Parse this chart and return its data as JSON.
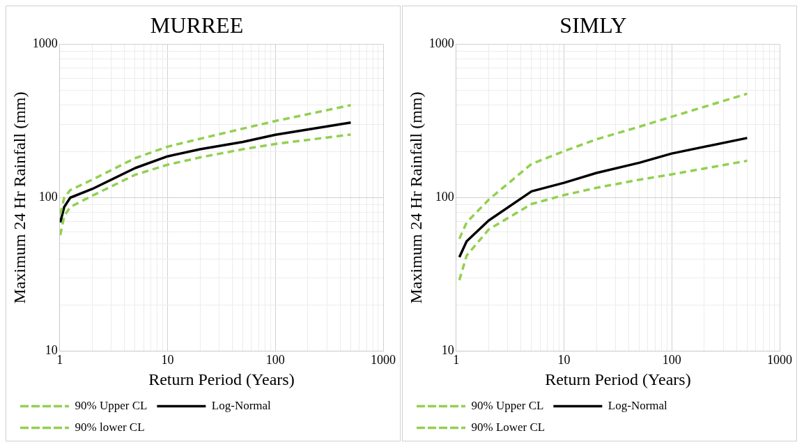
{
  "chart_data": [
    {
      "type": "line",
      "title": "MURREE",
      "xlabel": "Return Period (Years)",
      "ylabel": "Maximum 24 Hr Rainfall (mm)",
      "log": "xy",
      "grid": true,
      "legend": "bottom",
      "marker": "none",
      "x": [
        1.01,
        1.1,
        1.25,
        2,
        5,
        10,
        20,
        50,
        100,
        500
      ],
      "series": [
        {
          "name": "90% Upper CL",
          "color": "#92d050",
          "line_style": "dashed",
          "values": [
            78,
            100,
            112,
            131,
            181,
            215,
            242,
            282,
            316,
            401
          ]
        },
        {
          "name": "Log-Normal",
          "color": "#000000",
          "line_style": "solid",
          "values": [
            69,
            87,
            100,
            114,
            156,
            186,
            207,
            231,
            257,
            309
          ]
        },
        {
          "name": "90% lower CL",
          "color": "#92d050",
          "line_style": "dashed",
          "values": [
            57,
            76,
            87,
            103,
            141,
            164,
            183,
            207,
            224,
            258
          ]
        }
      ],
      "xlim": [
        1,
        1000
      ],
      "ylim": [
        10,
        1000
      ],
      "xticks": [
        1,
        {
          "value": 2,
          "label": null
        },
        {
          "value": 3,
          "label": null
        },
        {
          "value": 4,
          "label": null
        },
        {
          "value": 5,
          "label": null
        },
        {
          "value": 6,
          "label": null
        },
        {
          "value": 7,
          "label": null
        },
        {
          "value": 8,
          "label": null
        },
        {
          "value": 9,
          "label": null
        },
        10,
        {
          "value": 20,
          "label": null
        },
        {
          "value": 30,
          "label": null
        },
        {
          "value": 40,
          "label": null
        },
        {
          "value": 50,
          "label": null
        },
        {
          "value": 60,
          "label": null
        },
        {
          "value": 70,
          "label": null
        },
        {
          "value": 80,
          "label": null
        },
        {
          "value": 90,
          "label": null
        },
        100,
        {
          "value": 200,
          "label": null
        },
        {
          "value": 300,
          "label": null
        },
        {
          "value": 400,
          "label": null
        },
        {
          "value": 500,
          "label": null
        },
        {
          "value": 600,
          "label": null
        },
        {
          "value": 700,
          "label": null
        },
        {
          "value": 800,
          "label": null
        },
        {
          "value": 900,
          "label": null
        },
        1000
      ],
      "yticks": [
        10,
        {
          "value": 20,
          "label": null
        },
        {
          "value": 30,
          "label": null
        },
        {
          "value": 40,
          "label": null
        },
        {
          "value": 50,
          "label": null
        },
        {
          "value": 60,
          "label": null
        },
        {
          "value": 70,
          "label": null
        },
        {
          "value": 80,
          "label": null
        },
        {
          "value": 90,
          "label": null
        },
        100,
        {
          "value": 200,
          "label": null
        },
        {
          "value": 300,
          "label": null
        },
        {
          "value": 400,
          "label": null
        },
        {
          "value": 500,
          "label": null
        },
        {
          "value": 600,
          "label": null
        },
        {
          "value": 700,
          "label": null
        },
        {
          "value": 800,
          "label": null
        },
        {
          "value": 900,
          "label": null
        },
        1000
      ]
    },
    {
      "type": "line",
      "title": "SIMLY",
      "xlabel": "Return Period (Years)",
      "ylabel": "Maximum 24 Hr Rainfall (mm)",
      "log": "xy",
      "grid": true,
      "legend": "bottom",
      "marker": "none",
      "x": [
        1.07,
        1.25,
        2,
        5,
        10,
        20,
        50,
        100,
        500
      ],
      "series": [
        {
          "name": "90% Upper CL",
          "color": "#92d050",
          "line_style": "dashed",
          "values": [
            54,
            69,
            97,
            166,
            201,
            240,
            290,
            337,
            476
          ]
        },
        {
          "name": "Log-Normal",
          "color": "#000000",
          "line_style": "solid",
          "values": [
            41,
            52,
            71,
            110,
            125,
            145,
            169,
            194,
            245
          ]
        },
        {
          "name": "90% Lower CL",
          "color": "#92d050",
          "line_style": "dashed",
          "values": [
            29,
            42,
            62,
            91,
            104,
            116,
            131,
            142,
            174
          ]
        }
      ],
      "xlim": [
        1,
        1000
      ],
      "ylim": [
        10,
        1000
      ],
      "xticks": [
        1,
        {
          "value": 2,
          "label": null
        },
        {
          "value": 3,
          "label": null
        },
        {
          "value": 4,
          "label": null
        },
        {
          "value": 5,
          "label": null
        },
        {
          "value": 6,
          "label": null
        },
        {
          "value": 7,
          "label": null
        },
        {
          "value": 8,
          "label": null
        },
        {
          "value": 9,
          "label": null
        },
        10,
        {
          "value": 20,
          "label": null
        },
        {
          "value": 30,
          "label": null
        },
        {
          "value": 40,
          "label": null
        },
        {
          "value": 50,
          "label": null
        },
        {
          "value": 60,
          "label": null
        },
        {
          "value": 70,
          "label": null
        },
        {
          "value": 80,
          "label": null
        },
        {
          "value": 90,
          "label": null
        },
        100,
        {
          "value": 200,
          "label": null
        },
        {
          "value": 300,
          "label": null
        },
        {
          "value": 400,
          "label": null
        },
        {
          "value": 500,
          "label": null
        },
        {
          "value": 600,
          "label": null
        },
        {
          "value": 700,
          "label": null
        },
        {
          "value": 800,
          "label": null
        },
        {
          "value": 900,
          "label": null
        },
        1000
      ],
      "yticks": [
        10,
        {
          "value": 20,
          "label": null
        },
        {
          "value": 30,
          "label": null
        },
        {
          "value": 40,
          "label": null
        },
        {
          "value": 50,
          "label": null
        },
        {
          "value": 60,
          "label": null
        },
        {
          "value": 70,
          "label": null
        },
        {
          "value": 80,
          "label": null
        },
        {
          "value": 90,
          "label": null
        },
        100,
        {
          "value": 200,
          "label": null
        },
        {
          "value": 300,
          "label": null
        },
        {
          "value": 400,
          "label": null
        },
        {
          "value": 500,
          "label": null
        },
        {
          "value": 600,
          "label": null
        },
        {
          "value": 700,
          "label": null
        },
        {
          "value": 800,
          "label": null
        },
        {
          "value": 900,
          "label": null
        },
        1000
      ]
    }
  ]
}
